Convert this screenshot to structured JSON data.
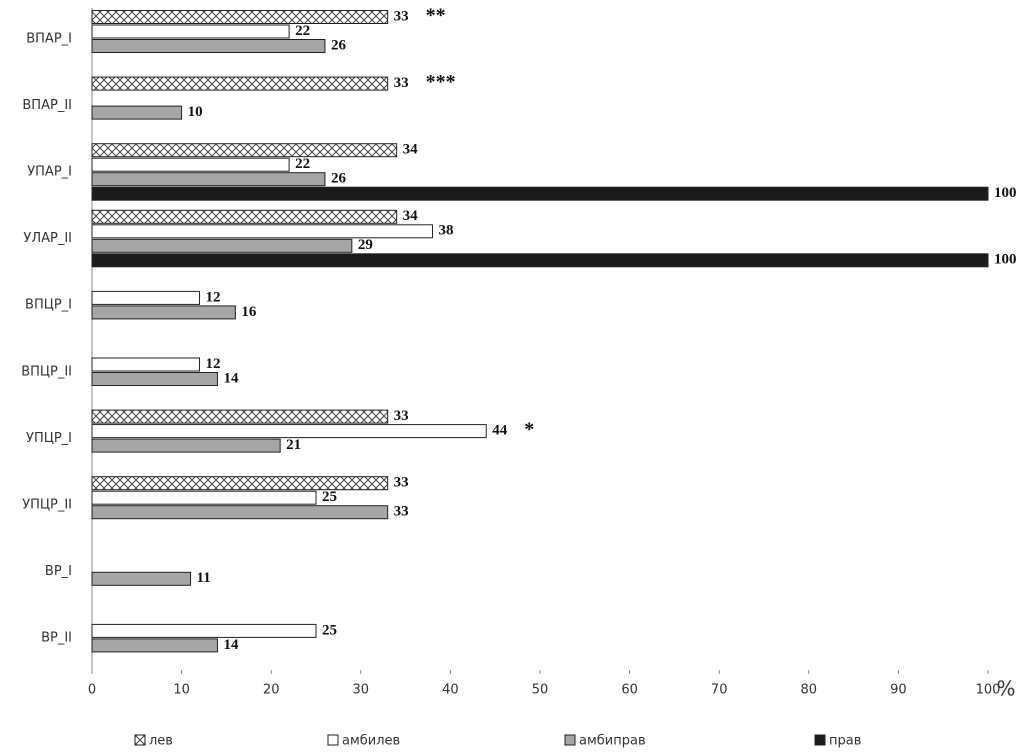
{
  "chart_data": {
    "type": "bar",
    "orientation": "horizontal",
    "categories": [
      "ВПАР_I",
      "ВПАР_II",
      "УПАР_I",
      "УЛАР_II",
      "ВПЦР_I",
      "ВПЦР_II",
      "УПЦР_I",
      "УПЦР_II",
      "ВР_I",
      "ВР_II"
    ],
    "series": [
      {
        "name": "лев",
        "color": "#ffffff",
        "pattern": "crosshatch",
        "values": [
          33,
          33,
          34,
          34,
          null,
          null,
          33,
          33,
          null,
          null
        ]
      },
      {
        "name": "амбилев",
        "color": "#ffffff",
        "values": [
          22,
          null,
          22,
          38,
          12,
          12,
          44,
          25,
          null,
          25
        ]
      },
      {
        "name": "амбиправ",
        "color": "#a6a6a6",
        "values": [
          26,
          10,
          26,
          29,
          16,
          14,
          21,
          33,
          11,
          14
        ]
      },
      {
        "name": "прав",
        "color": "#1a1a1a",
        "values": [
          null,
          null,
          100,
          100,
          null,
          null,
          null,
          null,
          null,
          null
        ]
      }
    ],
    "annotations": [
      {
        "text": "**",
        "category": 0,
        "series": 0
      },
      {
        "text": "***",
        "category": 1,
        "series": 0
      },
      {
        "text": "*",
        "category": 6,
        "series": 1
      }
    ],
    "xlabel": "%",
    "xlim": [
      0,
      100
    ],
    "xticks": [
      0,
      10,
      20,
      30,
      40,
      50,
      60,
      70,
      80,
      90,
      100
    ],
    "grid": false,
    "legend": "bottom"
  }
}
